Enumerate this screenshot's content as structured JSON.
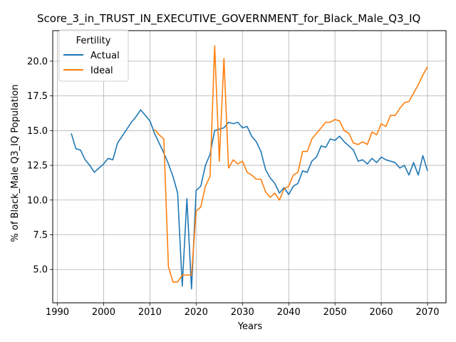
{
  "chart_data": {
    "type": "line",
    "title": "Score_3_in_TRUST_IN_EXECUTIVE_GOVERNMENT_for_Black_Male_Q3_IQ",
    "xlabel": "Years",
    "ylabel": "% of Black_Male Q3_IQ Population",
    "xlim": [
      1989,
      2074
    ],
    "ylim": [
      2.6,
      22.2
    ],
    "xticks": [
      1990,
      2000,
      2010,
      2020,
      2030,
      2040,
      2050,
      2060,
      2070
    ],
    "yticks": [
      5.0,
      7.5,
      10.0,
      12.5,
      15.0,
      17.5,
      20.0
    ],
    "xtick_labels": [
      "1990",
      "2000",
      "2010",
      "2020",
      "2030",
      "2040",
      "2050",
      "2060",
      "2070"
    ],
    "ytick_labels": [
      "5.0",
      "7.5",
      "10.0",
      "12.5",
      "15.0",
      "17.5",
      "20.0"
    ],
    "grid": true,
    "legend": {
      "title": "Fertility",
      "placement": "top-left"
    },
    "series": [
      {
        "name": "Actual",
        "color": "#1f77b4",
        "x": [
          1993,
          1994,
          1995,
          1996,
          1997,
          1998,
          1999,
          2000,
          2001,
          2002,
          2003,
          2004,
          2005,
          2006,
          2007,
          2008,
          2009,
          2010,
          2011,
          2012,
          2013,
          2014,
          2015,
          2016,
          2017,
          2018,
          2019,
          2020,
          2021,
          2022,
          2023,
          2024,
          2025,
          2026,
          2027,
          2028,
          2029,
          2030,
          2031,
          2032,
          2033,
          2034,
          2035,
          2036,
          2037,
          2038,
          2039,
          2040,
          2041,
          2042,
          2043,
          2044,
          2045,
          2046,
          2047,
          2048,
          2049,
          2050,
          2051,
          2052,
          2053,
          2054,
          2055,
          2056,
          2057,
          2058,
          2059,
          2060,
          2061,
          2062,
          2063,
          2064,
          2065,
          2066,
          2067,
          2068,
          2069,
          2070
        ],
        "y": [
          14.8,
          13.7,
          13.6,
          12.9,
          12.5,
          12.0,
          12.3,
          12.6,
          13.0,
          12.9,
          14.1,
          14.6,
          15.1,
          15.6,
          16.0,
          16.5,
          16.1,
          15.7,
          14.8,
          14.1,
          13.4,
          12.6,
          11.7,
          10.5,
          3.8,
          10.1,
          3.6,
          10.7,
          11.0,
          12.5,
          13.3,
          15.0,
          15.1,
          15.2,
          15.6,
          15.5,
          15.6,
          15.2,
          15.3,
          14.6,
          14.2,
          13.5,
          12.2,
          11.6,
          11.2,
          10.5,
          10.9,
          10.4,
          11.0,
          11.2,
          12.1,
          12.0,
          12.8,
          13.1,
          13.9,
          13.8,
          14.4,
          14.3,
          14.6,
          14.2,
          13.9,
          13.6,
          12.8,
          12.9,
          12.6,
          13.0,
          12.7,
          13.1,
          12.9,
          12.8,
          12.7,
          12.3,
          12.5,
          11.8,
          12.7,
          11.8,
          13.2,
          12.1
        ]
      },
      {
        "name": "Ideal",
        "color": "#ff7f0e",
        "x": [
          2011,
          2012,
          2013,
          2014,
          2015,
          2016,
          2017,
          2018,
          2019,
          2020,
          2021,
          2022,
          2023,
          2024,
          2025,
          2026,
          2027,
          2028,
          2029,
          2030,
          2031,
          2032,
          2033,
          2034,
          2035,
          2036,
          2037,
          2038,
          2039,
          2040,
          2041,
          2042,
          2043,
          2044,
          2045,
          2046,
          2047,
          2048,
          2049,
          2050,
          2051,
          2052,
          2053,
          2054,
          2055,
          2056,
          2057,
          2058,
          2059,
          2060,
          2061,
          2062,
          2063,
          2064,
          2065,
          2066,
          2067,
          2068,
          2069,
          2070
        ],
        "y": [
          15.1,
          14.7,
          14.4,
          5.2,
          4.1,
          4.1,
          4.6,
          4.6,
          4.6,
          9.2,
          9.5,
          11.0,
          11.7,
          21.1,
          12.8,
          20.2,
          12.3,
          12.9,
          12.6,
          12.8,
          12.0,
          11.8,
          11.5,
          11.5,
          10.6,
          10.2,
          10.5,
          10.0,
          10.8,
          11.0,
          11.8,
          12.0,
          13.5,
          13.5,
          14.4,
          14.8,
          15.2,
          15.6,
          15.6,
          15.8,
          15.7,
          15.0,
          14.8,
          14.1,
          14.0,
          14.2,
          14.0,
          14.9,
          14.7,
          15.5,
          15.3,
          16.1,
          16.1,
          16.6,
          17.0,
          17.1,
          17.7,
          18.3,
          19.0,
          19.6
        ]
      }
    ]
  }
}
